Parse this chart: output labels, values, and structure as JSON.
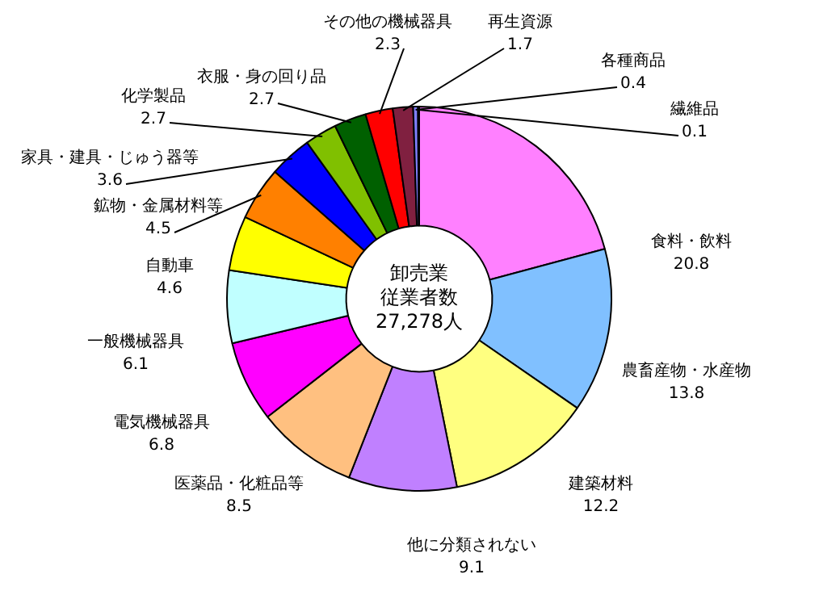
{
  "chart_data": {
    "type": "donut",
    "annotations": [
      "卸売業",
      "従業者数",
      "27,278人"
    ],
    "categories": [
      "食料・飲料",
      "農畜産物・水産物",
      "建築材料",
      "他に分類されない",
      "医薬品・化粧品等",
      "電気機械器具",
      "一般機械器具",
      "自動車",
      "鉱物・金属材料等",
      "家具・建具・じゅう器等",
      "化学製品",
      "衣服・身の回り品",
      "その他の機械器具",
      "再生資源",
      "各種商品",
      "繊維品"
    ],
    "values": [
      20.8,
      13.8,
      12.2,
      9.1,
      8.5,
      6.8,
      6.1,
      4.6,
      4.5,
      3.6,
      2.7,
      2.7,
      2.3,
      1.7,
      0.4,
      0.1
    ],
    "colors": [
      "#ff80ff",
      "#80c0ff",
      "#ffff80",
      "#c080ff",
      "#ffc080",
      "#ff00ff",
      "#c0ffff",
      "#ffff00",
      "#ff8000",
      "#0000ff",
      "#80c000",
      "#006000",
      "#ff0000",
      "#802040",
      "#8080ff",
      "#000080"
    ],
    "data_labels": true,
    "legend": false
  }
}
